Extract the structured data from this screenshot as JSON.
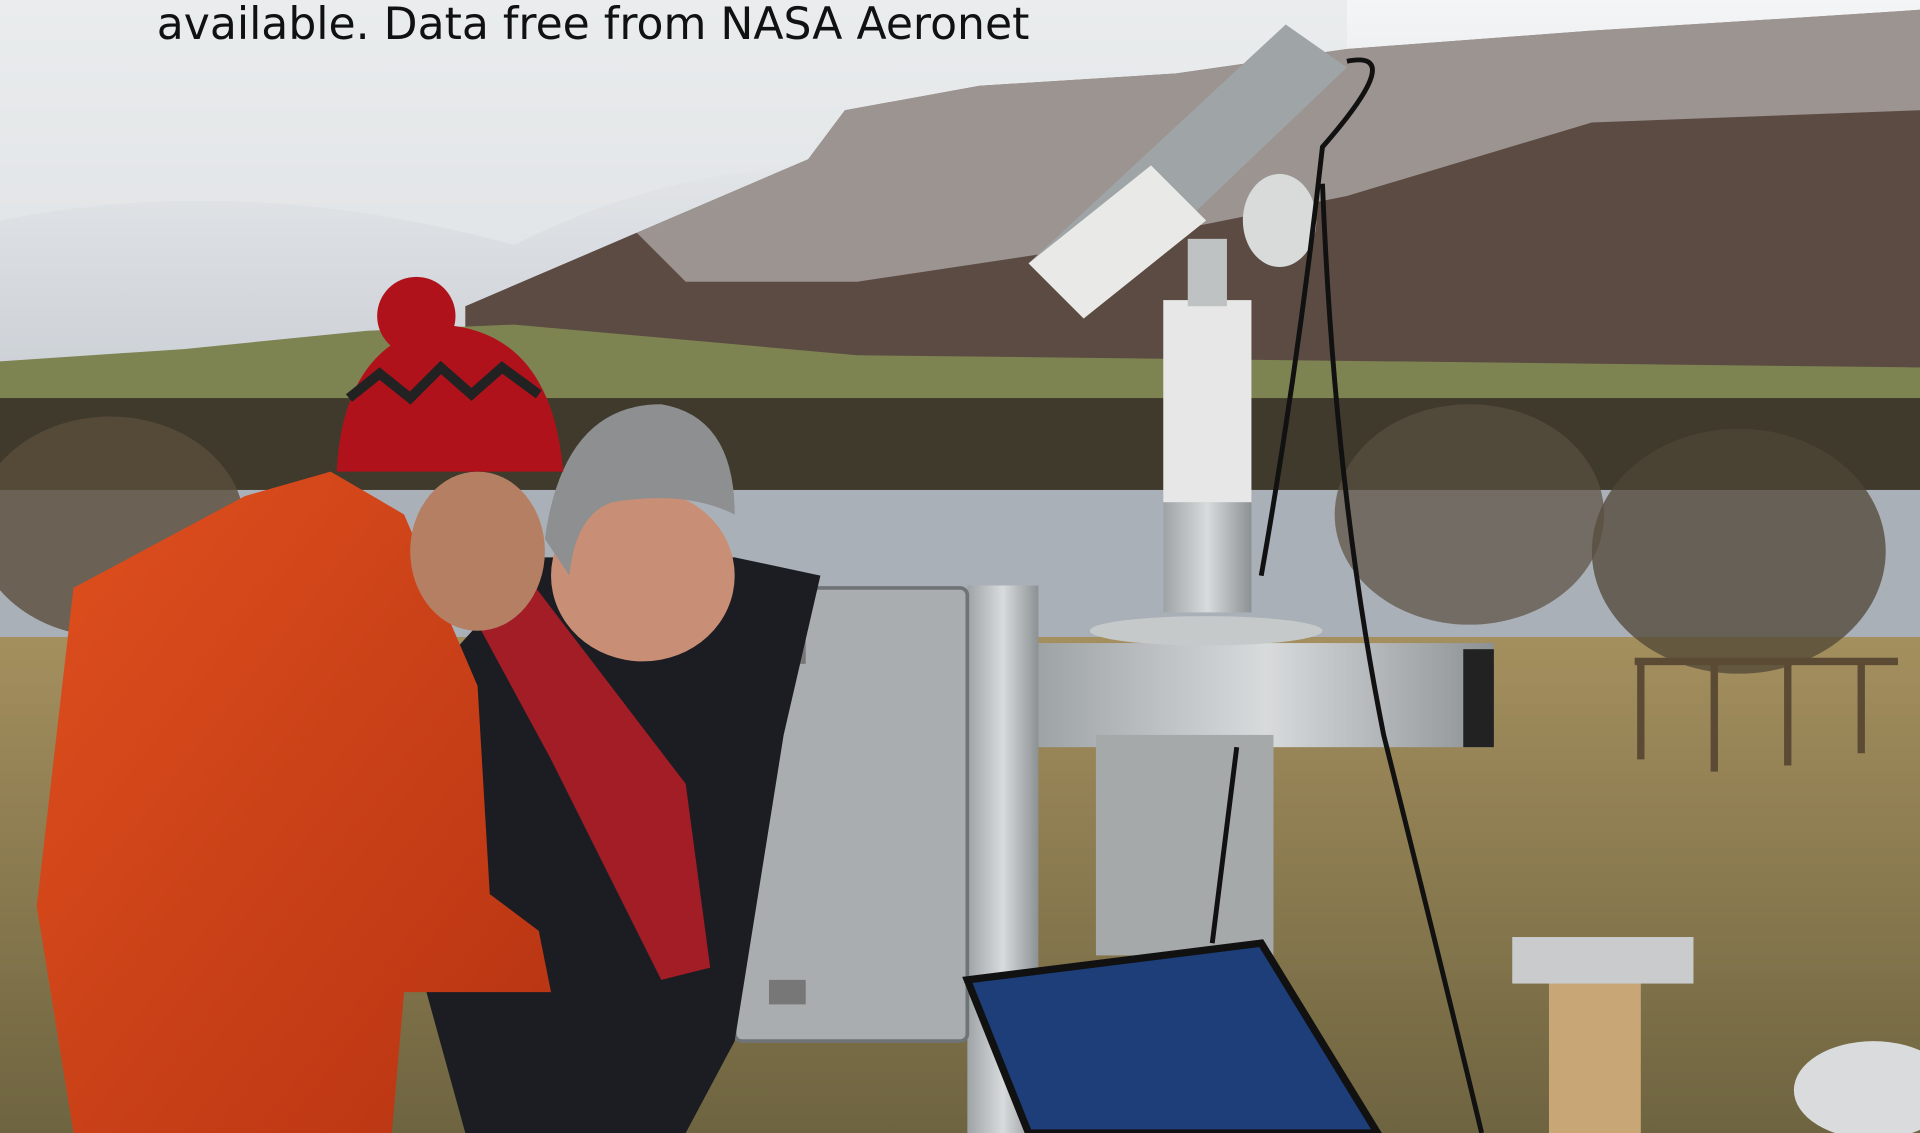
{
  "caption": "available. Data free from NASA Aeronet"
}
